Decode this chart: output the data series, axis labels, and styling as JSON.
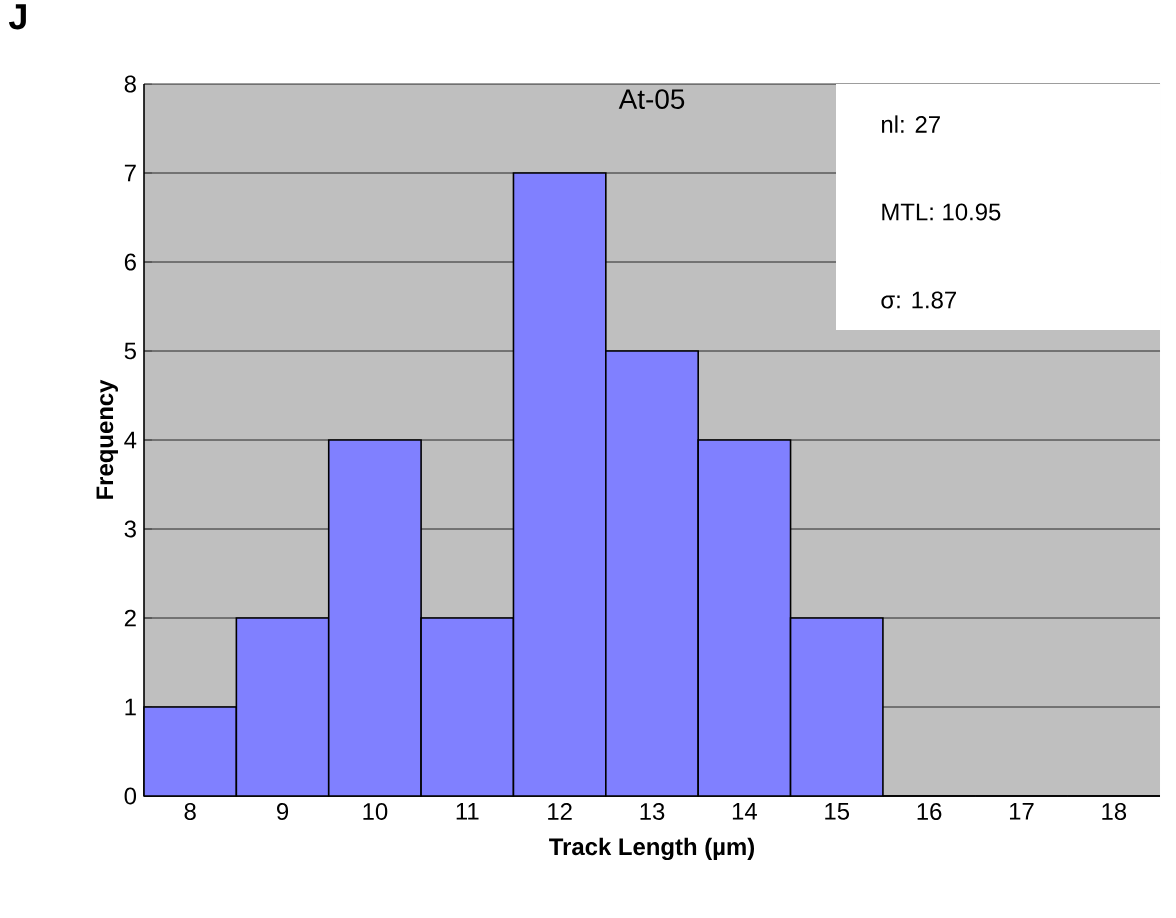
{
  "chart_data": {
    "type": "bar",
    "title": "At-05",
    "xlabel": "Track Length (µm)",
    "ylabel": "Frequency",
    "categories": [
      "8",
      "9",
      "10",
      "11",
      "12",
      "13",
      "14",
      "15",
      "16",
      "17",
      "18"
    ],
    "values": [
      1,
      2,
      4,
      2,
      7,
      5,
      4,
      2,
      0,
      0,
      0
    ],
    "color": "#8080ff",
    "ylim": [
      0,
      8
    ],
    "yticks": [
      0,
      1,
      2,
      3,
      4,
      5,
      6,
      7,
      8
    ],
    "grid": "y",
    "annotations": [
      "J",
      "nl: 27",
      "MTL: 10.95",
      "σ: 1.87"
    ]
  }
}
